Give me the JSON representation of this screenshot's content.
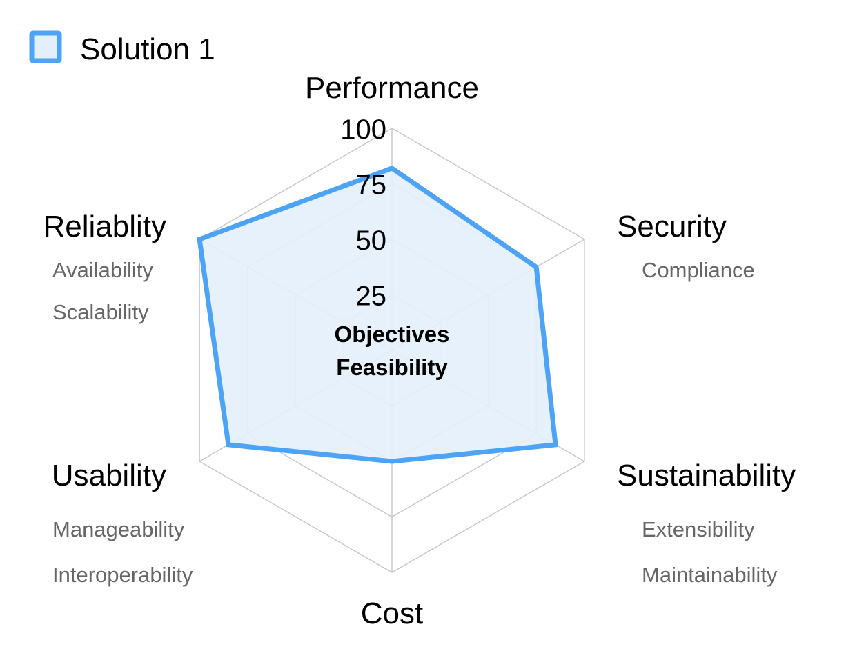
{
  "chart_data": {
    "type": "radar",
    "center_label": [
      "Objectives",
      "Feasibility"
    ],
    "legend": [
      {
        "name": "Solution 1",
        "fill": "#e3f0fc",
        "stroke": "#4da3f5"
      }
    ],
    "axes": [
      {
        "label": "Performance",
        "sublabels": []
      },
      {
        "label": "Security",
        "sublabels": [
          "Compliance"
        ]
      },
      {
        "label": "Sustainability",
        "sublabels": [
          "Extensibility",
          "Maintainability"
        ]
      },
      {
        "label": "Cost",
        "sublabels": []
      },
      {
        "label": "Usability",
        "sublabels": [
          "Manageability",
          "Interoperability"
        ]
      },
      {
        "label": "Reliablity",
        "sublabels": [
          "Availability",
          "Scalability"
        ]
      }
    ],
    "ticks": [
      25,
      50,
      75,
      100
    ],
    "range": [
      0,
      100
    ],
    "series": [
      {
        "name": "Solution 1",
        "values": [
          82,
          75,
          85,
          50,
          85,
          100
        ]
      }
    ],
    "colors": {
      "series_stroke": "#4da3f5",
      "series_fill": "#e3f0fc",
      "grid": "#c8c8c8",
      "sublabel": "#666666"
    }
  }
}
